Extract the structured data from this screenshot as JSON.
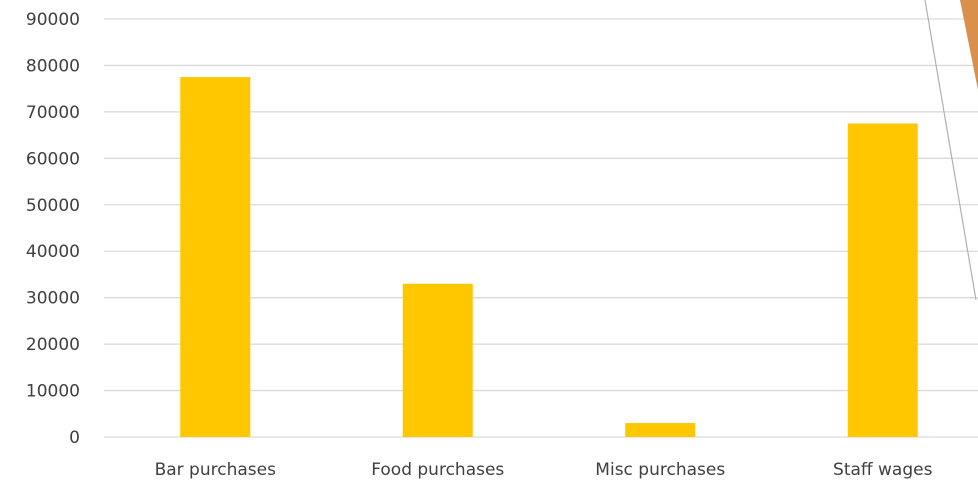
{
  "chart_data": {
    "type": "bar",
    "categories": [
      "Bar purchases",
      "Food purchases",
      "Misc purchases",
      "Staff wages"
    ],
    "series": [
      {
        "values": [
          77500,
          33000,
          3000,
          67500
        ]
      }
    ],
    "title": "",
    "xlabel": "",
    "ylabel": "",
    "ylim": [
      0,
      90000
    ],
    "yticks": [
      0,
      10000,
      20000,
      30000,
      40000,
      50000,
      60000,
      70000,
      80000,
      90000
    ],
    "ytick_labels": [
      "0",
      "10000",
      "20000",
      "30000",
      "40000",
      "50000",
      "60000",
      "70000",
      "80000",
      "90000"
    ],
    "grid": true,
    "legend": "none",
    "bar_color": "#FFC700",
    "grid_color": "#D9D9D9"
  },
  "decoration": {
    "accent_color": "#D9904A",
    "line_color": "#B0B0B0"
  }
}
